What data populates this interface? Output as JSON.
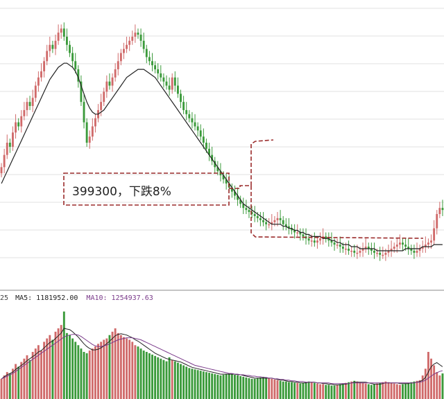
{
  "annotation": {
    "text": "399300，下跌8%"
  },
  "volume_header": {
    "prefix": "25",
    "ma5_label": "MA5: 1181952.00",
    "ma10_label": "MA10: 1254937.63"
  },
  "colors": {
    "up": "#d06a6a",
    "down": "#3a9a3a",
    "ma_line": "#222222",
    "ma10_line": "#7a3a8a",
    "grid": "#d8d8d8",
    "callout": "#9a2a2a"
  },
  "chart_data": [
    {
      "type": "candlestick",
      "title": "",
      "xlabel": "",
      "ylabel": "",
      "grid": "horizontal",
      "x": [
        1,
        2,
        3,
        4,
        5,
        6,
        7,
        8,
        9,
        10,
        11,
        12,
        13,
        14,
        15,
        16,
        17,
        18,
        19,
        20,
        21,
        22,
        23,
        24,
        25,
        26,
        27,
        28,
        29,
        30,
        31,
        32,
        33,
        34,
        35,
        36,
        37,
        38,
        39,
        40,
        41,
        42,
        43,
        44,
        45,
        46,
        47,
        48,
        49,
        50,
        51,
        52,
        53,
        54,
        55,
        56,
        57,
        58,
        59,
        60,
        61,
        62,
        63,
        64,
        65,
        66,
        67,
        68,
        69,
        70,
        71,
        72,
        73,
        74,
        75,
        76,
        77,
        78,
        79,
        80,
        81,
        82,
        83,
        84,
        85,
        86,
        87,
        88,
        89,
        90,
        91,
        92,
        93,
        94,
        95,
        96,
        97,
        98,
        99,
        100,
        101,
        102,
        103,
        104,
        105,
        106,
        107,
        108,
        109,
        110,
        111,
        112,
        113,
        114,
        115,
        116,
        117,
        118,
        119,
        120,
        121,
        122,
        123,
        124,
        125,
        126,
        127,
        128,
        129,
        130,
        131,
        132,
        133,
        134,
        135,
        136,
        137,
        138,
        139,
        140,
        141,
        142,
        143,
        144,
        145,
        146,
        147,
        148,
        149,
        150,
        151,
        152,
        153,
        154,
        155,
        156
      ],
      "close": [
        118,
        124,
        130,
        128,
        135,
        140,
        138,
        143,
        146,
        150,
        148,
        152,
        158,
        162,
        165,
        170,
        175,
        178,
        176,
        180,
        184,
        186,
        182,
        178,
        174,
        170,
        166,
        160,
        150,
        140,
        130,
        133,
        138,
        142,
        146,
        150,
        155,
        160,
        158,
        162,
        166,
        170,
        174,
        176,
        178,
        180,
        182,
        184,
        183,
        180,
        176,
        172,
        170,
        168,
        166,
        164,
        162,
        160,
        158,
        156,
        162,
        158,
        154,
        150,
        146,
        144,
        142,
        140,
        138,
        136,
        133,
        130,
        127,
        124,
        121,
        118,
        116,
        114,
        112,
        110,
        108,
        106,
        104,
        102,
        100,
        98,
        97,
        96,
        95,
        94,
        93,
        92,
        91,
        90,
        90,
        91,
        92,
        93,
        92,
        90,
        89,
        88,
        87,
        86,
        86,
        85,
        84,
        83,
        82,
        82,
        81,
        82,
        83,
        84,
        83,
        82,
        81,
        80,
        80,
        79,
        78,
        78,
        77,
        77,
        76,
        76,
        77,
        78,
        79,
        78,
        77,
        76,
        76,
        75,
        75,
        76,
        77,
        78,
        79,
        80,
        81,
        80,
        79,
        78,
        77,
        76,
        77,
        78,
        79,
        80,
        81,
        82,
        88,
        95,
        98,
        97
      ],
      "open": [
        115,
        118,
        124,
        130,
        128,
        135,
        140,
        138,
        143,
        146,
        150,
        148,
        152,
        158,
        162,
        165,
        170,
        175,
        178,
        176,
        180,
        184,
        186,
        182,
        178,
        174,
        170,
        166,
        160,
        150,
        140,
        130,
        133,
        138,
        142,
        146,
        150,
        155,
        160,
        158,
        162,
        166,
        170,
        174,
        176,
        178,
        180,
        182,
        184,
        183,
        180,
        176,
        172,
        170,
        168,
        166,
        164,
        162,
        160,
        158,
        156,
        162,
        158,
        154,
        150,
        146,
        144,
        142,
        140,
        138,
        136,
        133,
        130,
        127,
        124,
        121,
        118,
        116,
        114,
        112,
        110,
        108,
        106,
        104,
        102,
        100,
        98,
        97,
        96,
        95,
        94,
        93,
        92,
        91,
        90,
        90,
        91,
        92,
        93,
        92,
        90,
        89,
        88,
        87,
        86,
        86,
        85,
        84,
        83,
        82,
        82,
        81,
        82,
        83,
        84,
        83,
        82,
        81,
        80,
        80,
        79,
        78,
        78,
        77,
        77,
        76,
        76,
        77,
        78,
        79,
        78,
        77,
        76,
        76,
        75,
        75,
        76,
        77,
        78,
        79,
        80,
        81,
        80,
        79,
        78,
        77,
        76,
        77,
        78,
        79,
        80,
        81,
        82,
        88,
        95,
        98
      ],
      "ma": [
        110,
        113,
        116,
        119,
        122,
        125,
        128,
        131,
        134,
        137,
        140,
        143,
        146,
        149,
        152,
        155,
        158,
        161,
        163,
        165,
        167,
        168,
        169,
        169,
        168,
        167,
        165,
        162,
        158,
        154,
        150,
        147,
        145,
        144,
        144,
        145,
        146,
        148,
        150,
        152,
        154,
        156,
        158,
        160,
        162,
        163,
        164,
        165,
        166,
        166,
        166,
        165,
        164,
        163,
        162,
        160,
        158,
        156,
        154,
        152,
        150,
        148,
        146,
        144,
        142,
        140,
        138,
        136,
        134,
        132,
        130,
        128,
        126,
        124,
        122,
        120,
        118,
        116,
        114,
        112,
        110,
        108,
        106,
        104,
        102,
        100,
        99,
        98,
        97,
        96,
        95,
        94,
        93,
        92,
        91,
        90,
        90,
        90,
        90,
        89,
        89,
        88,
        88,
        87,
        87,
        86,
        86,
        85,
        85,
        84,
        84,
        84,
        84,
        83,
        83,
        83,
        82,
        82,
        81,
        81,
        80,
        80,
        80,
        79,
        79,
        79,
        78,
        78,
        78,
        78,
        78,
        78,
        77,
        77,
        77,
        77,
        77,
        77,
        77,
        77,
        77,
        77,
        78,
        78,
        78,
        78,
        78,
        78,
        79,
        79,
        79,
        79,
        80,
        80,
        80,
        80
      ],
      "ylim": [
        60,
        200
      ]
    },
    {
      "type": "bar",
      "title": "",
      "series": [
        {
          "name": "MA5",
          "value_label": "1181952.00"
        },
        {
          "name": "MA10",
          "value_label": "1254937.63"
        }
      ],
      "volumes": [
        30,
        35,
        40,
        38,
        45,
        52,
        48,
        55,
        60,
        65,
        58,
        70,
        75,
        80,
        72,
        85,
        90,
        95,
        88,
        100,
        105,
        110,
        130,
        98,
        95,
        90,
        85,
        80,
        75,
        70,
        68,
        72,
        75,
        78,
        82,
        85,
        88,
        90,
        95,
        100,
        105,
        98,
        95,
        92,
        90,
        88,
        85,
        80,
        78,
        75,
        72,
        70,
        68,
        66,
        64,
        62,
        60,
        58,
        56,
        62,
        58,
        56,
        54,
        52,
        50,
        48,
        46,
        45,
        44,
        43,
        42,
        41,
        40,
        39,
        38,
        37,
        36,
        35,
        36,
        37,
        38,
        37,
        36,
        35,
        34,
        33,
        32,
        31,
        30,
        30,
        31,
        32,
        33,
        32,
        31,
        30,
        29,
        28,
        27,
        26,
        26,
        25,
        25,
        24,
        24,
        23,
        24,
        25,
        26,
        25,
        24,
        23,
        22,
        22,
        21,
        21,
        20,
        20,
        21,
        22,
        23,
        24,
        25,
        26,
        27,
        26,
        25,
        24,
        23,
        22,
        21,
        22,
        23,
        24,
        25,
        26,
        25,
        24,
        23,
        22,
        21,
        22,
        23,
        24,
        25,
        26,
        27,
        28,
        35,
        45,
        70,
        60,
        50,
        40,
        35,
        38
      ],
      "ma5": [
        30,
        33,
        36,
        38,
        40,
        44,
        47,
        50,
        53,
        57,
        60,
        63,
        66,
        70,
        72,
        76,
        80,
        84,
        86,
        90,
        94,
        98,
        105,
        104,
        103,
        100,
        96,
        92,
        87,
        82,
        78,
        75,
        73,
        73,
        74,
        76,
        79,
        82,
        86,
        90,
        94,
        96,
        97,
        96,
        95,
        93,
        91,
        88,
        86,
        83,
        80,
        77,
        74,
        71,
        68,
        66,
        64,
        62,
        60,
        59,
        58,
        57,
        56,
        55,
        53,
        51,
        49,
        47,
        46,
        45,
        44,
        43,
        42,
        41,
        40,
        39,
        38,
        37,
        37,
        37,
        37,
        37,
        37,
        36,
        36,
        35,
        34,
        33,
        32,
        31,
        31,
        31,
        31,
        31,
        31,
        31,
        30,
        29,
        28,
        28,
        27,
        26,
        26,
        25,
        25,
        24,
        24,
        24,
        25,
        25,
        25,
        24,
        24,
        23,
        23,
        22,
        22,
        21,
        21,
        21,
        22,
        22,
        23,
        24,
        25,
        25,
        25,
        25,
        25,
        24,
        23,
        22,
        22,
        22,
        23,
        24,
        24,
        24,
        24,
        24,
        23,
        23,
        23,
        23,
        24,
        24,
        25,
        26,
        28,
        32,
        40,
        48,
        52,
        54,
        51,
        48
      ],
      "ma10": [
        30,
        32,
        34,
        36,
        38,
        41,
        44,
        47,
        50,
        53,
        56,
        59,
        62,
        65,
        68,
        71,
        74,
        77,
        80,
        83,
        86,
        89,
        92,
        94,
        95,
        96,
        96,
        95,
        93,
        90,
        87,
        84,
        81,
        79,
        78,
        78,
        79,
        80,
        82,
        84,
        86,
        88,
        89,
        90,
        91,
        91,
        91,
        90,
        89,
        88,
        86,
        84,
        82,
        80,
        78,
        76,
        74,
        72,
        70,
        68,
        66,
        64,
        62,
        60,
        58,
        56,
        54,
        52,
        50,
        49,
        48,
        47,
        46,
        45,
        44,
        43,
        42,
        41,
        40,
        39,
        38,
        38,
        37,
        37,
        36,
        36,
        35,
        35,
        34,
        34,
        33,
        33,
        32,
        32,
        31,
        31,
        30,
        30,
        29,
        29,
        28,
        28,
        27,
        27,
        26,
        26,
        26,
        25,
        25,
        25,
        25,
        24,
        24,
        24,
        24,
        24,
        23,
        23,
        23,
        23,
        23,
        23,
        23,
        24,
        24,
        24,
        24,
        24,
        24,
        24,
        24,
        24,
        24,
        24,
        24,
        24,
        24,
        24,
        24,
        24,
        24,
        24,
        24,
        24,
        24,
        24,
        25,
        25,
        26,
        28,
        31,
        34,
        37,
        39,
        41,
        42
      ],
      "ylim": [
        0,
        140
      ]
    }
  ]
}
